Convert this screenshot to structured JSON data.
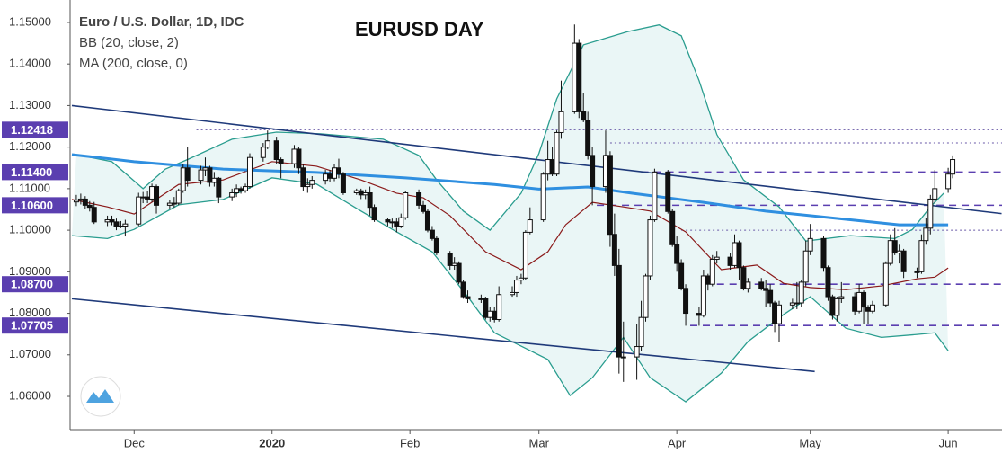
{
  "chart_data": {
    "type": "candlestick",
    "title": "EURUSD DAY",
    "legend": [
      "Euro / U.S. Dollar, 1D, IDC",
      "BB (20, close, 2)",
      "MA (200, close, 0)"
    ],
    "xlim": [
      16.6,
      226.1
    ],
    "ylim": [
      1.052,
      1.1554
    ],
    "xticks": [
      {
        "value": 31,
        "label": "Dec"
      },
      {
        "value": 62,
        "label": "2020"
      },
      {
        "value": 93,
        "label": "Feb"
      },
      {
        "value": 122,
        "label": "Mar"
      },
      {
        "value": 153,
        "label": "Apr"
      },
      {
        "value": 183,
        "label": "May"
      },
      {
        "value": 214,
        "label": "Jun"
      }
    ],
    "yticks": [
      {
        "value": 1.15,
        "label": "1.15000"
      },
      {
        "value": 1.14,
        "label": "1.14000"
      },
      {
        "value": 1.13,
        "label": "1.13000"
      },
      {
        "value": 1.12,
        "label": "1.12000"
      },
      {
        "value": 1.11,
        "label": "1.11000"
      },
      {
        "value": 1.1,
        "label": "1.10000"
      },
      {
        "value": 1.09,
        "label": "1.09000"
      },
      {
        "value": 1.08,
        "label": "1.08000"
      },
      {
        "value": 1.07,
        "label": "1.07000"
      },
      {
        "value": 1.06,
        "label": "1.06000"
      }
    ],
    "grid": false,
    "up_color": "#ffffff",
    "down_color": "#111111",
    "candles": [
      [
        18,
        1.1068,
        1.1085,
        1.1058,
        1.1072
      ],
      [
        19,
        1.1072,
        1.1088,
        1.1062,
        1.1075
      ],
      [
        20,
        1.1075,
        1.1082,
        1.105,
        1.106
      ],
      [
        21,
        1.106,
        1.107,
        1.1045,
        1.1055
      ],
      [
        22,
        1.1055,
        1.1068,
        1.1015,
        1.102
      ],
      [
        25,
        1.102,
        1.1035,
        1.101,
        1.1025
      ],
      [
        26,
        1.1025,
        1.1035,
        1.1012,
        1.102
      ],
      [
        27,
        1.102,
        1.1028,
        1.1,
        1.101
      ],
      [
        28,
        1.101,
        1.1022,
        1.1005,
        1.101
      ],
      [
        29,
        1.101,
        1.1025,
        1.0985,
        1.1015
      ],
      [
        32,
        1.1015,
        1.109,
        1.101,
        1.108
      ],
      [
        33,
        1.108,
        1.1092,
        1.1065,
        1.108
      ],
      [
        34,
        1.108,
        1.1095,
        1.1065,
        1.1075
      ],
      [
        35,
        1.1075,
        1.1112,
        1.1068,
        1.1105
      ],
      [
        36,
        1.1105,
        1.111,
        1.104,
        1.106
      ],
      [
        39,
        1.106,
        1.1072,
        1.1052,
        1.1065
      ],
      [
        40,
        1.1065,
        1.108,
        1.1055,
        1.1065
      ],
      [
        41,
        1.1065,
        1.11,
        1.106,
        1.1095
      ],
      [
        42,
        1.1095,
        1.116,
        1.109,
        1.115
      ],
      [
        43,
        1.115,
        1.12,
        1.1105,
        1.112
      ],
      [
        46,
        1.112,
        1.1155,
        1.111,
        1.1145
      ],
      [
        47,
        1.1145,
        1.1175,
        1.113,
        1.115
      ],
      [
        48,
        1.115,
        1.1155,
        1.1105,
        1.1115
      ],
      [
        49,
        1.1115,
        1.114,
        1.1105,
        1.1125
      ],
      [
        50,
        1.1125,
        1.1128,
        1.1065,
        1.108
      ],
      [
        53,
        1.108,
        1.11,
        1.107,
        1.109
      ],
      [
        54,
        1.109,
        1.111,
        1.108,
        1.11
      ],
      [
        55,
        1.11,
        1.1105,
        1.1088,
        1.1095
      ],
      [
        56,
        1.1095,
        1.1112,
        1.109,
        1.1105
      ],
      [
        57,
        1.1105,
        1.1185,
        1.11,
        1.1175
      ],
      [
        60,
        1.1175,
        1.121,
        1.1165,
        1.12
      ],
      [
        61,
        1.12,
        1.124,
        1.1195,
        1.1215
      ],
      [
        63,
        1.1215,
        1.1225,
        1.116,
        1.117
      ],
      [
        64,
        1.117,
        1.1175,
        1.1125,
        1.116
      ],
      [
        67,
        1.116,
        1.1205,
        1.115,
        1.1195
      ],
      [
        68,
        1.1195,
        1.12,
        1.1135,
        1.115
      ],
      [
        69,
        1.115,
        1.116,
        1.1095,
        1.1105
      ],
      [
        70,
        1.1105,
        1.1125,
        1.109,
        1.111
      ],
      [
        71,
        1.111,
        1.113,
        1.11,
        1.112
      ],
      [
        74,
        1.112,
        1.1145,
        1.111,
        1.1135
      ],
      [
        75,
        1.1135,
        1.1145,
        1.1115,
        1.1125
      ],
      [
        76,
        1.1125,
        1.116,
        1.1118,
        1.115
      ],
      [
        77,
        1.115,
        1.1172,
        1.1125,
        1.1135
      ],
      [
        78,
        1.1135,
        1.114,
        1.1085,
        1.109
      ],
      [
        81,
        1.109,
        1.11,
        1.1085,
        1.1095
      ],
      [
        82,
        1.1095,
        1.11,
        1.1075,
        1.1085
      ],
      [
        83,
        1.1085,
        1.1098,
        1.1075,
        1.109
      ],
      [
        84,
        1.109,
        1.1105,
        1.1035,
        1.1055
      ],
      [
        85,
        1.1055,
        1.1062,
        1.102,
        1.1025
      ],
      [
        88,
        1.1025,
        1.103,
        1.101,
        1.102
      ],
      [
        89,
        1.102,
        1.1028,
        1.1005,
        1.102
      ],
      [
        90,
        1.102,
        1.103,
        1.0995,
        1.101
      ],
      [
        91,
        1.101,
        1.104,
        1.1005,
        1.103
      ],
      [
        92,
        1.103,
        1.1095,
        1.1025,
        1.109
      ],
      [
        95,
        1.109,
        1.1098,
        1.105,
        1.106
      ],
      [
        96,
        1.106,
        1.107,
        1.104,
        1.1045
      ],
      [
        97,
        1.1045,
        1.105,
        1.0995,
        1.1
      ],
      [
        98,
        1.1,
        1.101,
        1.0975,
        1.098
      ],
      [
        99,
        1.098,
        1.0985,
        1.094,
        1.0945
      ],
      [
        102,
        1.0945,
        1.095,
        1.0905,
        1.0915
      ],
      [
        103,
        1.0915,
        1.0935,
        1.0905,
        1.092
      ],
      [
        104,
        1.092,
        1.0925,
        1.087,
        1.0875
      ],
      [
        105,
        1.0875,
        1.088,
        1.0835,
        1.084
      ],
      [
        106,
        1.084,
        1.0855,
        1.0825,
        1.0835
      ],
      [
        109,
        1.0835,
        1.0845,
        1.0825,
        1.0835
      ],
      [
        110,
        1.0835,
        1.084,
        1.0785,
        1.079
      ],
      [
        111,
        1.079,
        1.0815,
        1.078,
        1.0805
      ],
      [
        112,
        1.0805,
        1.0815,
        1.0778,
        1.0785
      ],
      [
        113,
        1.0785,
        1.0865,
        1.078,
        1.0845
      ],
      [
        116,
        1.0845,
        1.0865,
        1.084,
        1.085
      ],
      [
        117,
        1.085,
        1.089,
        1.084,
        1.088
      ],
      [
        118,
        1.088,
        1.0895,
        1.087,
        1.0885
      ],
      [
        119,
        1.0885,
        1.1,
        1.088,
        1.0995
      ],
      [
        120,
        1.0995,
        1.1055,
        1.099,
        1.1025
      ],
      [
        123,
        1.1025,
        1.114,
        1.102,
        1.1135
      ],
      [
        124,
        1.1135,
        1.1215,
        1.112,
        1.117
      ],
      [
        125,
        1.117,
        1.12,
        1.113,
        1.1135
      ],
      [
        126,
        1.1135,
        1.124,
        1.113,
        1.1235
      ],
      [
        127,
        1.1235,
        1.136,
        1.122,
        1.1285
      ],
      [
        130,
        1.1285,
        1.1495,
        1.128,
        1.145
      ],
      [
        131,
        1.145,
        1.146,
        1.127,
        1.1285
      ],
      [
        132,
        1.1285,
        1.133,
        1.126,
        1.1265
      ],
      [
        133,
        1.1265,
        1.1285,
        1.117,
        1.118
      ],
      [
        134,
        1.118,
        1.12,
        1.106,
        1.1105
      ],
      [
        137,
        1.1105,
        1.124,
        1.109,
        1.118
      ],
      [
        138,
        1.118,
        1.119,
        1.096,
        1.099
      ],
      [
        139,
        1.099,
        1.104,
        1.089,
        1.0915
      ],
      [
        140,
        1.0915,
        1.0955,
        1.0655,
        1.0695
      ],
      [
        141,
        1.0695,
        1.078,
        1.0635,
        1.0695
      ],
      [
        144,
        1.0695,
        1.0775,
        1.064,
        1.072
      ],
      [
        145,
        1.072,
        1.083,
        1.071,
        1.079
      ],
      [
        146,
        1.079,
        1.0895,
        1.078,
        1.089
      ],
      [
        147,
        1.089,
        1.1035,
        1.088,
        1.1025
      ],
      [
        148,
        1.1025,
        1.1148,
        1.102,
        1.114
      ],
      [
        151,
        1.114,
        1.1145,
        1.104,
        1.1045
      ],
      [
        152,
        1.1045,
        1.105,
        1.096,
        1.0965
      ],
      [
        153,
        1.0965,
        1.0985,
        1.09,
        1.092
      ],
      [
        154,
        1.092,
        1.093,
        1.0855,
        1.086
      ],
      [
        155,
        1.086,
        1.087,
        1.077,
        1.08
      ],
      [
        158,
        1.08,
        1.0815,
        1.077,
        1.0795
      ],
      [
        159,
        1.0795,
        1.0905,
        1.079,
        1.089
      ],
      [
        160,
        1.089,
        1.0895,
        1.0855,
        1.087
      ],
      [
        161,
        1.087,
        1.094,
        1.0865,
        1.093
      ],
      [
        162,
        1.093,
        1.095,
        1.092,
        1.0935
      ],
      [
        165,
        1.0935,
        1.0945,
        1.0905,
        1.0915
      ],
      [
        166,
        1.0915,
        1.099,
        1.091,
        1.097
      ],
      [
        167,
        1.097,
        1.0975,
        1.088,
        1.091
      ],
      [
        168,
        1.091,
        1.0915,
        1.0855,
        1.086
      ],
      [
        169,
        1.086,
        1.0885,
        1.085,
        1.0875
      ],
      [
        172,
        1.0875,
        1.0885,
        1.0855,
        1.086
      ],
      [
        173,
        1.086,
        1.088,
        1.0815,
        1.0855
      ],
      [
        174,
        1.0855,
        1.087,
        1.0815,
        1.0825
      ],
      [
        175,
        1.0825,
        1.083,
        1.0755,
        1.0775
      ],
      [
        176,
        1.0775,
        1.083,
        1.073,
        1.082
      ],
      [
        179,
        1.082,
        1.0835,
        1.081,
        1.0825
      ],
      [
        180,
        1.0825,
        1.0875,
        1.081,
        1.0825
      ],
      [
        181,
        1.0825,
        1.088,
        1.0815,
        1.0875
      ],
      [
        182,
        1.0875,
        1.0975,
        1.0865,
        1.095
      ],
      [
        183,
        1.095,
        1.1015,
        1.094,
        1.098
      ],
      [
        186,
        1.098,
        1.0985,
        1.09,
        1.091
      ],
      [
        187,
        1.091,
        1.0915,
        1.083,
        1.084
      ],
      [
        188,
        1.084,
        1.0845,
        1.0785,
        1.0795
      ],
      [
        189,
        1.0795,
        1.084,
        1.078,
        1.0835
      ],
      [
        190,
        1.0835,
        1.0875,
        1.0825,
        1.084
      ],
      [
        193,
        1.084,
        1.085,
        1.0795,
        1.0805
      ],
      [
        194,
        1.0805,
        1.087,
        1.08,
        1.085
      ],
      [
        195,
        1.085,
        1.0855,
        1.0775,
        1.0815
      ],
      [
        196,
        1.0815,
        1.082,
        1.0775,
        1.0805
      ],
      [
        197,
        1.0805,
        1.083,
        1.08,
        1.082
      ],
      [
        200,
        1.082,
        1.0925,
        1.0815,
        1.092
      ],
      [
        201,
        1.092,
        1.099,
        1.0915,
        1.0975
      ],
      [
        202,
        1.0975,
        1.1005,
        1.094,
        1.0945
      ],
      [
        203,
        1.0945,
        1.0965,
        1.092,
        1.095
      ],
      [
        204,
        1.095,
        1.0955,
        1.0885,
        1.09
      ],
      [
        207,
        1.09,
        1.091,
        1.0885,
        1.09
      ],
      [
        208,
        1.09,
        1.099,
        1.0895,
        1.0975
      ],
      [
        209,
        1.0975,
        1.103,
        1.0965,
        1.1005
      ],
      [
        210,
        1.1005,
        1.1085,
        1.099,
        1.1075
      ],
      [
        211,
        1.1075,
        1.1145,
        1.1065,
        1.11
      ],
      [
        214,
        1.11,
        1.115,
        1.109,
        1.1135
      ],
      [
        215,
        1.1135,
        1.118,
        1.1125,
        1.117
      ]
    ],
    "lines": [
      {
        "color": "#2a9d8f",
        "width": 1.3,
        "x": [
          18,
          26,
          33,
          38,
          43,
          53,
          63,
          73,
          87,
          95,
          99,
          105,
          111,
          118,
          122,
          126,
          132,
          142,
          149,
          154,
          158,
          162,
          168,
          176,
          182,
          192,
          202,
          206,
          210,
          213
        ],
        "values": [
          1.1182,
          1.1165,
          1.11,
          1.1147,
          1.117,
          1.1219,
          1.1236,
          1.1232,
          1.1219,
          1.118,
          1.1121,
          1.1046,
          1.1,
          1.1089,
          1.1185,
          1.1316,
          1.1446,
          1.1478,
          1.1494,
          1.1468,
          1.136,
          1.123,
          1.1121,
          1.1056,
          1.0974,
          1.0987,
          1.098,
          1.1002,
          1.1056,
          1.1089
        ]
      },
      {
        "color": "#2a9d8f",
        "width": 1.3,
        "x": [
          17,
          25,
          31,
          41,
          51,
          62,
          72,
          82,
          90,
          98,
          106,
          112,
          118,
          124,
          129,
          134,
          141,
          147,
          155,
          163,
          169,
          177,
          183,
          191,
          199,
          207,
          211,
          214
        ],
        "values": [
          1.0987,
          1.098,
          1.1002,
          1.1061,
          1.1074,
          1.1126,
          1.1111,
          1.1046,
          1.0996,
          1.0948,
          1.084,
          1.0753,
          1.0721,
          1.0689,
          1.0602,
          1.0645,
          1.0742,
          1.0645,
          1.0587,
          1.0656,
          1.0732,
          1.0797,
          1.084,
          1.0764,
          1.0742,
          1.0749,
          1.0753,
          1.071
        ]
      },
      {
        "color": "#8b1a1a",
        "width": 1.2,
        "x": [
          17,
          25,
          31,
          41,
          51,
          62,
          72,
          82,
          90,
          96,
          102,
          110,
          118,
          124,
          128,
          134,
          141,
          147,
          155,
          163,
          171,
          177,
          183,
          191,
          199,
          207,
          211,
          214
        ],
        "values": [
          1.1074,
          1.1056,
          1.1039,
          1.111,
          1.1121,
          1.1165,
          1.1154,
          1.1121,
          1.1089,
          1.1078,
          1.1035,
          1.0948,
          1.0905,
          1.0948,
          1.1013,
          1.1067,
          1.1056,
          1.1046,
          1.0996,
          1.0905,
          1.0916,
          1.0872,
          1.0862,
          1.0857,
          1.0866,
          1.0883,
          1.0887,
          1.0909
        ]
      },
      {
        "color": "#2f8fe0",
        "width": 3,
        "x": [
          17,
          31,
          51,
          72,
          92,
          112,
          122,
          133,
          143,
          159,
          173,
          193,
          203,
          214
        ],
        "values": [
          1.1182,
          1.1165,
          1.1147,
          1.1139,
          1.1126,
          1.111,
          1.1099,
          1.1104,
          1.1089,
          1.1067,
          1.1046,
          1.1024,
          1.1013,
          1.1013
        ]
      },
      {
        "color": "#1f3a7a",
        "width": 1.6,
        "x": [
          17,
          226
        ],
        "values": [
          1.13,
          1.104
        ]
      },
      {
        "color": "#1f3a7a",
        "width": 1.6,
        "x": [
          17,
          184
        ],
        "values": [
          1.0835,
          1.066
        ]
      }
    ],
    "band_color": "#eaf6f6",
    "levels": [
      {
        "value": 1.12418,
        "label": "1.12418",
        "from": 45,
        "style": "dotted"
      },
      {
        "value": 1.121,
        "from": 138,
        "style": "dotted"
      },
      {
        "value": 1.114,
        "label": "1.11400",
        "from": 145,
        "style": "dashed"
      },
      {
        "value": 1.106,
        "label": "1.10600",
        "from": 135,
        "style": "dashed"
      },
      {
        "value": 1.1,
        "from": 154,
        "style": "dotted"
      },
      {
        "value": 1.087,
        "label": "1.08700",
        "from": 162,
        "style": "dashed"
      },
      {
        "value": 1.07705,
        "label": "1.07705",
        "from": 156,
        "style": "dashed"
      }
    ],
    "level_color": "#5b3fb0"
  }
}
